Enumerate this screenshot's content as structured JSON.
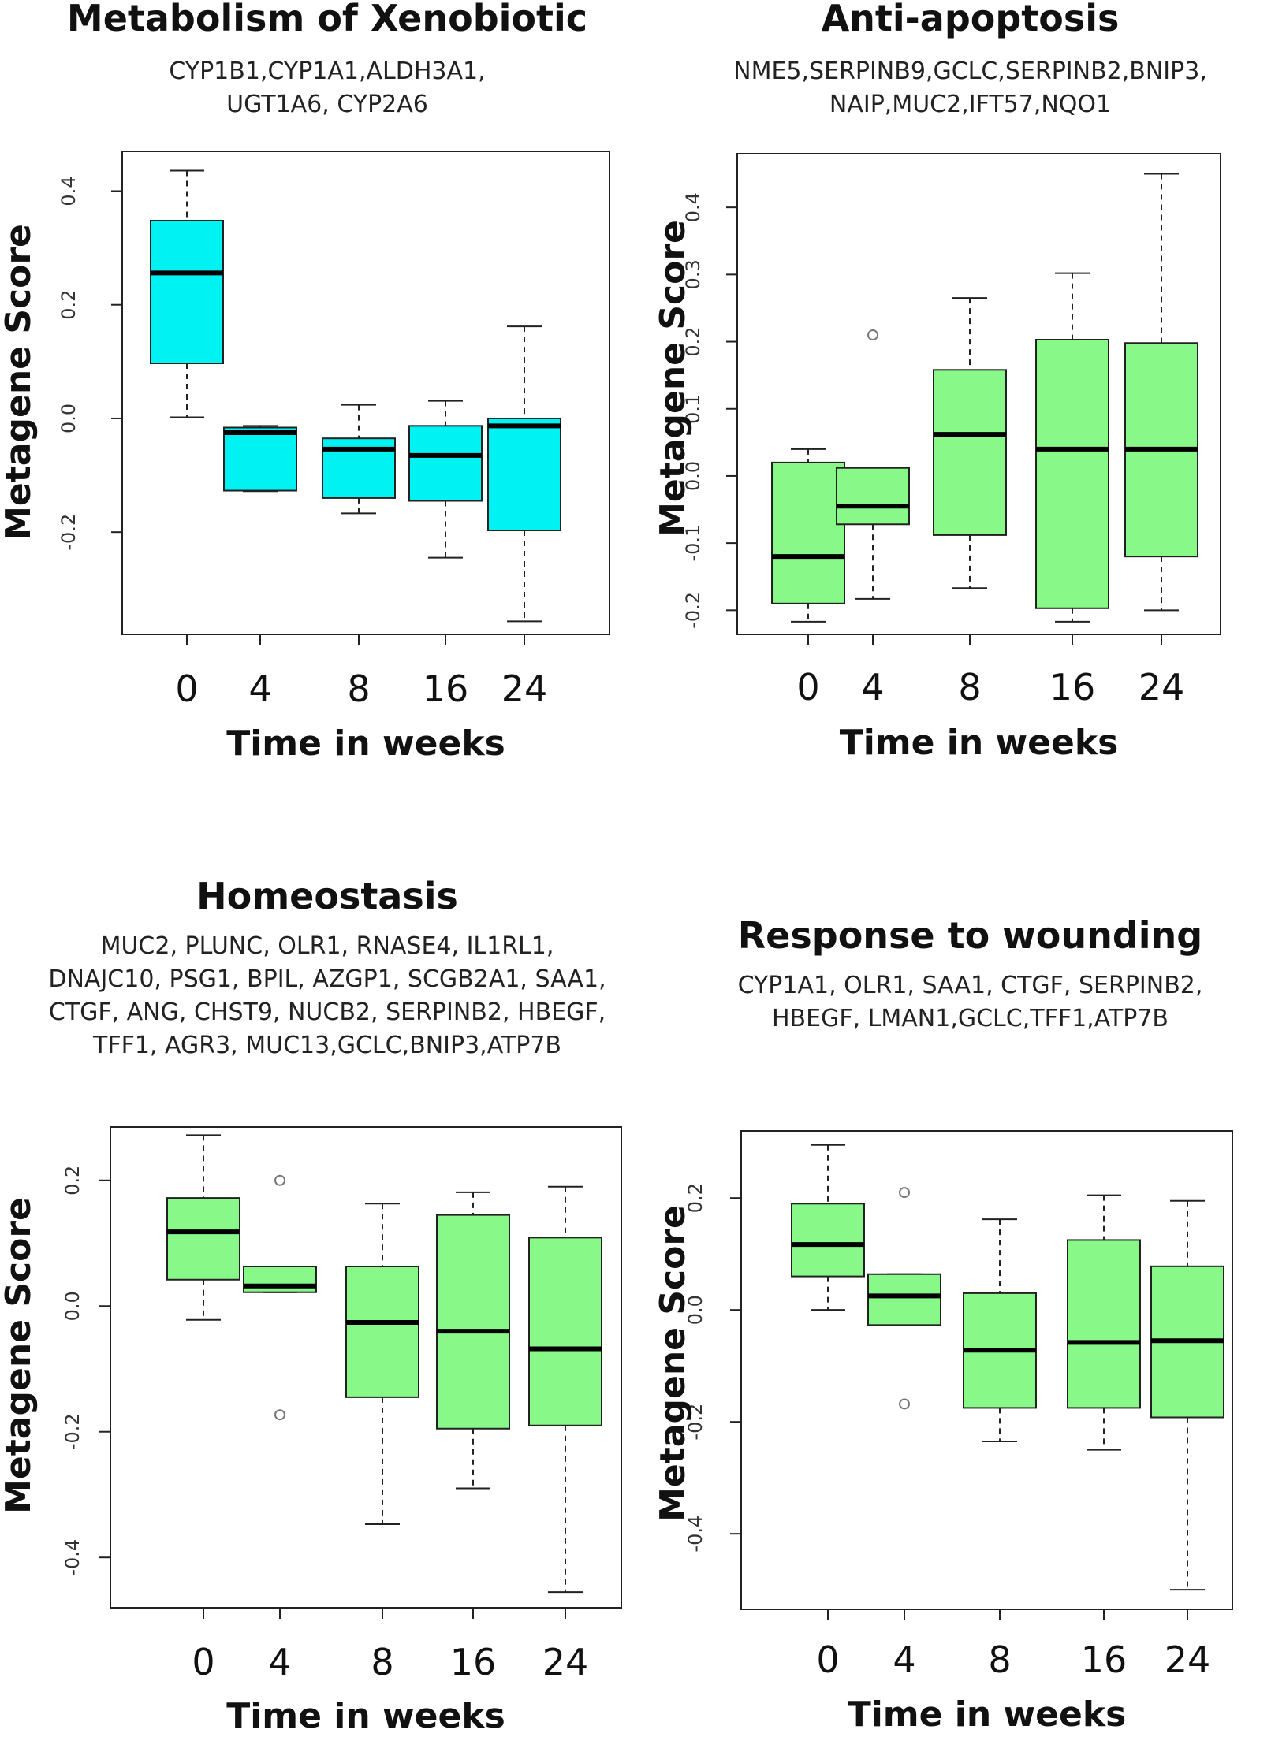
{
  "chart_data": [
    {
      "type": "boxplot",
      "title": "Metabolism  of Xenobiotic",
      "gene_lines": [
        "CYP1B1,CYP1A1,ALDH3A1,",
        "UGT1A6, CYP2A6"
      ],
      "xlabel": "Time in weeks",
      "ylabel": "Metagene Score",
      "categories": [
        "0",
        "4",
        "8",
        "16",
        "24"
      ],
      "yticks": [
        0.4,
        0.2,
        0.0,
        -0.2
      ],
      "ytick_labels": [
        "0.4",
        "0.2",
        "0.0",
        "-0.2"
      ],
      "ylim": [
        -0.38,
        0.47
      ],
      "box_color": "#00f2f2",
      "boxes": [
        {
          "whisker_low": 0.002,
          "q1": 0.097,
          "median": 0.256,
          "q3": 0.348,
          "whisker_high": 0.436,
          "outliers": []
        },
        {
          "whisker_low": -0.128,
          "q1": -0.127,
          "median": -0.025,
          "q3": -0.016,
          "whisker_high": -0.013,
          "outliers": []
        },
        {
          "whisker_low": -0.167,
          "q1": -0.14,
          "median": -0.054,
          "q3": -0.035,
          "whisker_high": 0.024,
          "outliers": []
        },
        {
          "whisker_low": -0.245,
          "q1": -0.145,
          "median": -0.065,
          "q3": -0.013,
          "whisker_high": 0.031,
          "outliers": []
        },
        {
          "whisker_low": -0.357,
          "q1": -0.197,
          "median": -0.013,
          "q3": 0.0,
          "whisker_high": 0.162,
          "outliers": []
        }
      ]
    },
    {
      "type": "boxplot",
      "title": "Anti-apoptosis",
      "gene_lines": [
        "NME5,SERPINB9,GCLC,SERPINB2,BNIP3,",
        "NAIP,MUC2,IFT57,NQO1"
      ],
      "xlabel": "Time in weeks",
      "ylabel": "Metagene Score",
      "categories": [
        "0",
        "4",
        "8",
        "16",
        "24"
      ],
      "yticks": [
        0.4,
        0.3,
        0.2,
        0.1,
        0.0,
        -0.1,
        -0.2
      ],
      "ytick_labels": [
        "0.4",
        "0.3",
        "0.2",
        "0.1",
        "0.0",
        "-0.1",
        "-0.2"
      ],
      "ylim": [
        -0.236,
        0.48
      ],
      "box_color": "#88f888",
      "boxes": [
        {
          "whisker_low": -0.217,
          "q1": -0.19,
          "median": -0.12,
          "q3": 0.02,
          "whisker_high": 0.04,
          "outliers": []
        },
        {
          "whisker_low": -0.183,
          "q1": -0.072,
          "median": -0.045,
          "q3": 0.012,
          "whisker_high": 0.012,
          "outliers": [
            0.21
          ]
        },
        {
          "whisker_low": -0.167,
          "q1": -0.088,
          "median": 0.062,
          "q3": 0.158,
          "whisker_high": 0.265,
          "outliers": []
        },
        {
          "whisker_low": -0.217,
          "q1": -0.197,
          "median": 0.04,
          "q3": 0.203,
          "whisker_high": 0.302,
          "outliers": []
        },
        {
          "whisker_low": -0.2,
          "q1": -0.12,
          "median": 0.04,
          "q3": 0.198,
          "whisker_high": 0.45,
          "outliers": []
        }
      ]
    },
    {
      "type": "boxplot",
      "title": "Homeostasis",
      "gene_lines": [
        "MUC2, PLUNC, OLR1, RNASE4, IL1RL1,",
        "DNAJC10, PSG1, BPIL, AZGP1, SCGB2A1, SAA1,",
        "CTGF, ANG, CHST9, NUCB2, SERPINB2, HBEGF,",
        "TFF1, AGR3, MUC13,GCLC,BNIP3,ATP7B"
      ],
      "xlabel": "Time in weeks",
      "ylabel": "Metagene Score",
      "categories": [
        "0",
        "4",
        "8",
        "16",
        "24"
      ],
      "yticks": [
        0.2,
        0.0,
        -0.2,
        -0.4
      ],
      "ytick_labels": [
        "0.2",
        "0.0",
        "-0.2",
        "-0.4"
      ],
      "ylim": [
        -0.48,
        0.285
      ],
      "box_color": "#88f888",
      "boxes": [
        {
          "whisker_low": -0.022,
          "q1": 0.042,
          "median": 0.118,
          "q3": 0.172,
          "whisker_high": 0.272,
          "outliers": []
        },
        {
          "whisker_low": 0.022,
          "q1": 0.022,
          "median": 0.032,
          "q3": 0.063,
          "whisker_high": 0.063,
          "outliers": [
            0.2,
            -0.173
          ]
        },
        {
          "whisker_low": -0.347,
          "q1": -0.145,
          "median": -0.026,
          "q3": 0.063,
          "whisker_high": 0.163,
          "outliers": []
        },
        {
          "whisker_low": -0.29,
          "q1": -0.195,
          "median": -0.04,
          "q3": 0.145,
          "whisker_high": 0.181,
          "outliers": []
        },
        {
          "whisker_low": -0.455,
          "q1": -0.19,
          "median": -0.068,
          "q3": 0.109,
          "whisker_high": 0.19,
          "outliers": []
        }
      ]
    },
    {
      "type": "boxplot",
      "title": "Response to wounding",
      "gene_lines": [
        "CYP1A1, OLR1, SAA1, CTGF, SERPINB2,",
        "HBEGF, LMAN1,GCLC,TFF1,ATP7B"
      ],
      "xlabel": "Time in weeks",
      "ylabel": "Metagene Score",
      "categories": [
        "0",
        "4",
        "8",
        "16",
        "24"
      ],
      "yticks": [
        0.2,
        0.0,
        -0.2,
        -0.4
      ],
      "ytick_labels": [
        "0.2",
        "0.0",
        "-0.2",
        "-0.4"
      ],
      "ylim": [
        -0.535,
        0.32
      ],
      "box_color": "#88f888",
      "boxes": [
        {
          "whisker_low": 0.0,
          "q1": 0.06,
          "median": 0.117,
          "q3": 0.19,
          "whisker_high": 0.295,
          "outliers": []
        },
        {
          "whisker_low": -0.027,
          "q1": -0.027,
          "median": 0.025,
          "q3": 0.064,
          "whisker_high": 0.064,
          "outliers": [
            0.21,
            -0.168
          ]
        },
        {
          "whisker_low": -0.235,
          "q1": -0.175,
          "median": -0.072,
          "q3": 0.03,
          "whisker_high": 0.162,
          "outliers": []
        },
        {
          "whisker_low": -0.25,
          "q1": -0.175,
          "median": -0.058,
          "q3": 0.125,
          "whisker_high": 0.205,
          "outliers": []
        },
        {
          "whisker_low": -0.5,
          "q1": -0.192,
          "median": -0.055,
          "q3": 0.078,
          "whisker_high": 0.195,
          "outliers": []
        }
      ]
    }
  ]
}
